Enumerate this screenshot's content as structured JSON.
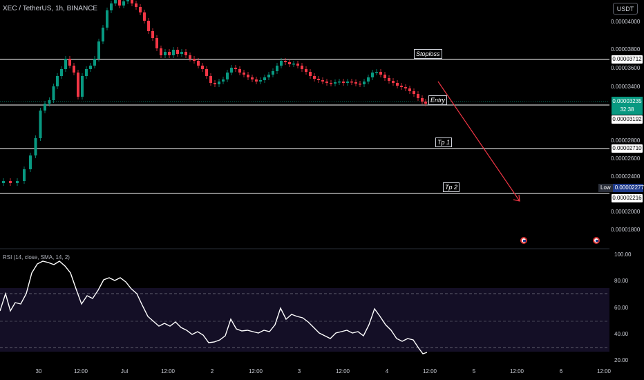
{
  "header": {
    "symbol_line": "XEC / TetherUS, 1h, BINANCE"
  },
  "currency_button": "USDT",
  "price_axis": [
    "0.00004000",
    "0.00003800",
    "0.00003600",
    "0.00003400",
    "0.00002800",
    "0.00002600",
    "0.00002400",
    "0.00002000",
    "0.00001800"
  ],
  "price_boxes": {
    "stoploss": "0.00003712",
    "entry": "0.00003192",
    "tp1": "0.00002710",
    "tp2": "0.00002216"
  },
  "current_price": {
    "value": "0.00003235",
    "countdown": "32:38",
    "color": "#089981"
  },
  "low_tag": {
    "label": "Low",
    "value": "0.00002277"
  },
  "labels": {
    "stoploss": "Stoploss",
    "entry": "Entry",
    "tp1": "Tp 1",
    "tp2": "Tp 2"
  },
  "rsi": {
    "title": "RSI (14, close, SMA, 14, 2)",
    "axis": [
      "100.00",
      "80.00",
      "60.00",
      "40.00",
      "20.00"
    ]
  },
  "time_axis": [
    "30",
    "12:00",
    "Jul",
    "12:00",
    "2",
    "12:00",
    "3",
    "12:00",
    "4",
    "12:00",
    "5",
    "12:00",
    "6",
    "12:00"
  ],
  "colors": {
    "up": "#089981",
    "down": "#f23645",
    "arrow": "#f23645",
    "rsi_band": "#160f27"
  }
}
